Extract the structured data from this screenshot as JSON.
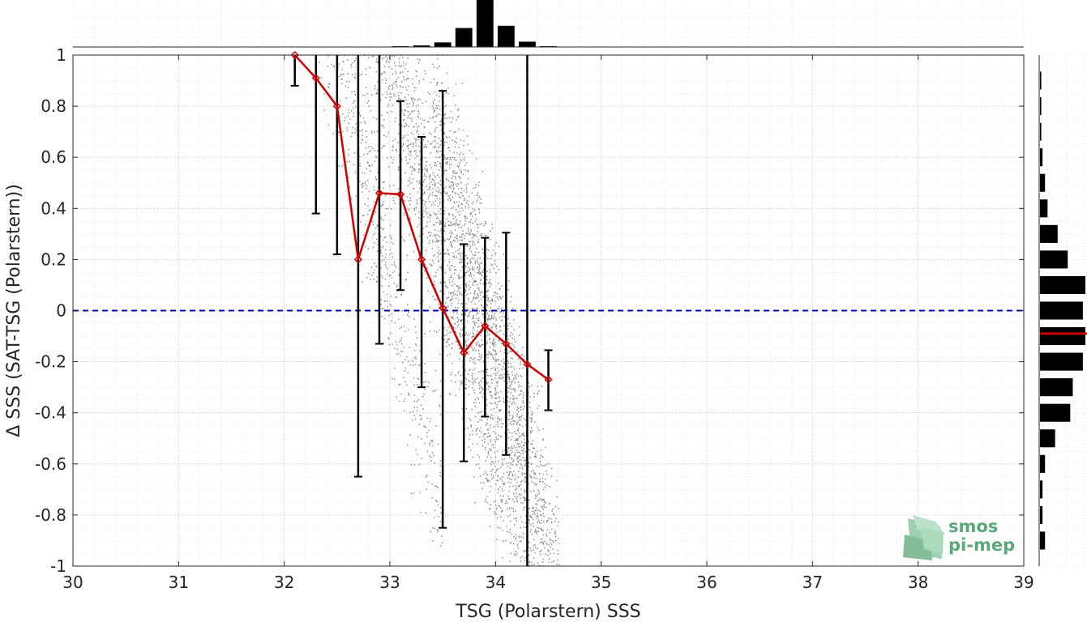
{
  "chart_data": {
    "type": "scatter",
    "xlabel": "TSG (Polarstern) SSS",
    "ylabel": "Δ SSS (SAT-TSG (Polarstern))",
    "xlim": [
      30,
      39
    ],
    "ylim": [
      -1,
      1
    ],
    "x_ticks": [
      "30",
      "31",
      "32",
      "33",
      "34",
      "35",
      "36",
      "37",
      "38",
      "39"
    ],
    "y_ticks": [
      "-1",
      "-0.8",
      "-0.6",
      "-0.4",
      "-0.2",
      "0",
      "0.2",
      "0.4",
      "0.6",
      "0.8",
      "1"
    ],
    "grid": true,
    "reference_line": {
      "y": 0,
      "style": "dashed",
      "color": "#0000c0"
    },
    "scatter_color": "#8c8c8c",
    "scatter_clusters": [
      {
        "x0": 32.7,
        "x1": 34.4,
        "slope": -1.5,
        "y_center": 0.15,
        "spread": 0.35
      },
      {
        "x0": 33.5,
        "x1": 34.5,
        "slope": -1.5,
        "y_center": -0.1,
        "spread": 0.3
      },
      {
        "x0": 32.3,
        "x1": 33.4,
        "slope": -1.8,
        "y_center": 0.4,
        "spread": 0.35
      }
    ],
    "binned_mean": {
      "color": "#d00000",
      "x": [
        32.1,
        32.3,
        32.5,
        32.7,
        32.9,
        33.1,
        33.3,
        33.5,
        33.7,
        33.9,
        34.1,
        34.3,
        34.5
      ],
      "y": [
        1.0,
        0.91,
        0.8,
        0.2,
        0.46,
        0.455,
        0.2,
        0.01,
        -0.165,
        -0.06,
        -0.13,
        -0.21,
        -0.27
      ],
      "err_low": [
        0.88,
        0.38,
        0.22,
        -0.65,
        -0.13,
        0.08,
        -0.3,
        -0.85,
        -0.59,
        -0.415,
        -0.565,
        -1.0,
        -0.39
      ],
      "err_high": [
        1.0,
        1.0,
        1.0,
        1.0,
        1.0,
        0.82,
        0.68,
        0.86,
        0.26,
        0.285,
        0.305,
        1.0,
        -0.155
      ]
    },
    "top_histogram": {
      "bin_centers": [
        32.9,
        33.1,
        33.3,
        33.5,
        33.7,
        33.9,
        34.1,
        34.3,
        34.5
      ],
      "counts": [
        0.5,
        1,
        2,
        6,
        25,
        62,
        28,
        7,
        1
      ]
    },
    "right_histogram": {
      "bin_centers": [
        0.9,
        0.8,
        0.7,
        0.6,
        0.5,
        0.4,
        0.3,
        0.2,
        0.1,
        0.0,
        -0.1,
        -0.2,
        -0.3,
        -0.4,
        -0.5,
        -0.6,
        -0.7,
        -0.8,
        -0.9
      ],
      "counts": [
        0.5,
        0.5,
        0.5,
        1,
        2,
        3,
        7,
        11,
        18,
        17,
        18,
        17,
        13,
        12,
        6,
        2,
        1,
        1,
        2
      ],
      "median_line": {
        "y": -0.09,
        "color": "#d00000"
      }
    }
  },
  "logo": {
    "line1": "smos",
    "line2": "pi-mep",
    "color": "#5aa878"
  }
}
